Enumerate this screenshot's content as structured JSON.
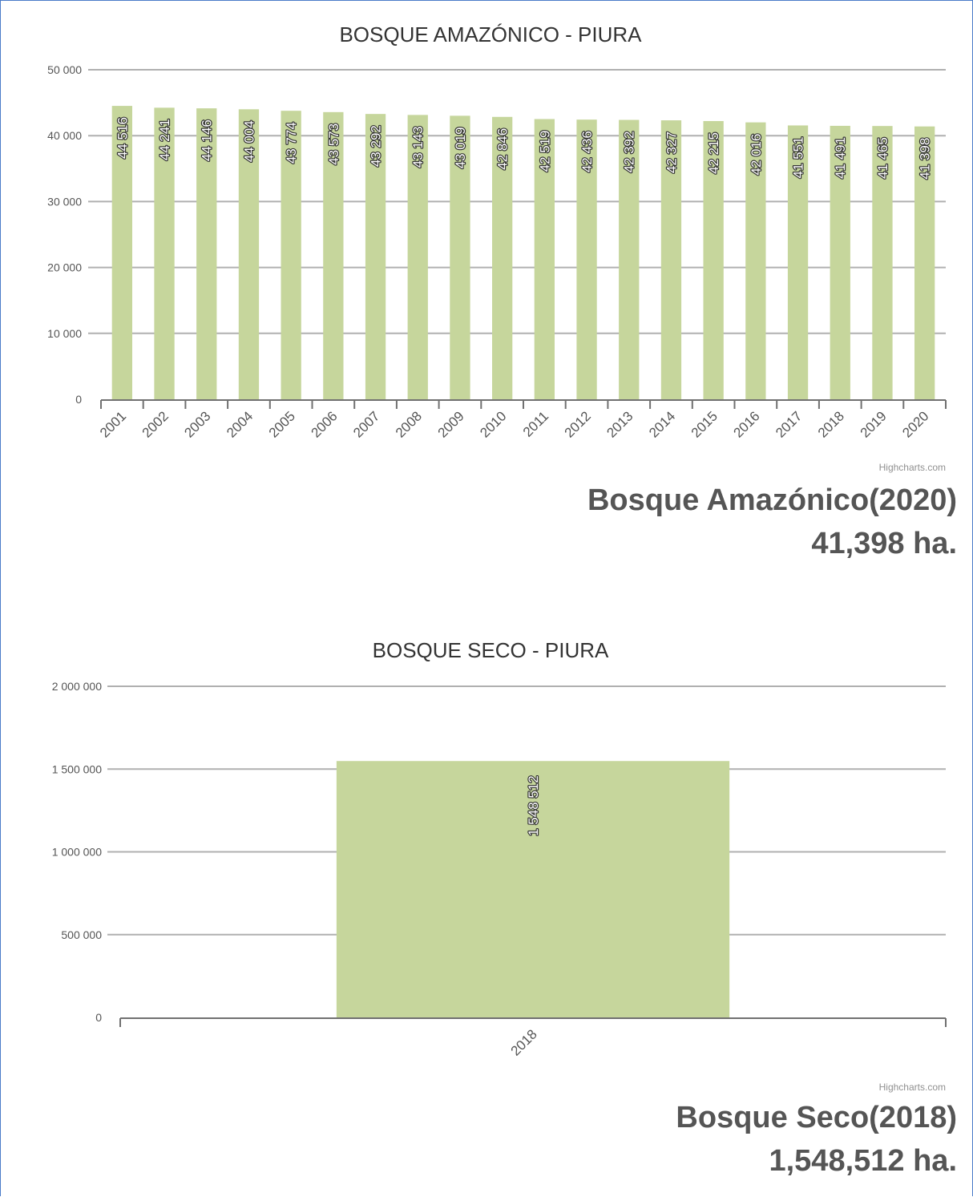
{
  "chart_data": [
    {
      "type": "bar",
      "title": "BOSQUE AMAZÓNICO - PIURA",
      "categories": [
        "2001",
        "2002",
        "2003",
        "2004",
        "2005",
        "2006",
        "2007",
        "2008",
        "2009",
        "2010",
        "2011",
        "2012",
        "2013",
        "2014",
        "2015",
        "2016",
        "2017",
        "2018",
        "2019",
        "2020"
      ],
      "values": [
        44516,
        44241,
        44146,
        44004,
        43774,
        43573,
        43292,
        43143,
        43019,
        42846,
        42519,
        42436,
        42392,
        42327,
        42215,
        42016,
        41551,
        41491,
        41465,
        41398
      ],
      "data_labels": [
        "44 516",
        "44 241",
        "44 146",
        "44 004",
        "43 774",
        "43 573",
        "43 292",
        "43 143",
        "43 019",
        "42 846",
        "42 519",
        "42 436",
        "42 392",
        "42 327",
        "42 215",
        "42 016",
        "41 551",
        "41 491",
        "41 465",
        "41 398"
      ],
      "ylim": [
        0,
        50000
      ],
      "yticks": [
        0,
        10000,
        20000,
        30000,
        40000,
        50000
      ],
      "ytick_labels": [
        "0",
        "10 000",
        "20 000",
        "30 000",
        "40 000",
        "50 000"
      ],
      "xlabel": "",
      "ylabel": "",
      "grid": true,
      "legend": false,
      "bar_color": "#c6d69c",
      "credit": "Highcharts.com"
    },
    {
      "type": "bar",
      "title": "BOSQUE SECO - PIURA",
      "categories": [
        "2018"
      ],
      "values": [
        1548512
      ],
      "data_labels": [
        "1 548 512"
      ],
      "ylim": [
        0,
        2000000
      ],
      "yticks": [
        0,
        500000,
        1000000,
        1500000,
        2000000
      ],
      "ytick_labels": [
        "0",
        "500 000",
        "1 000 000",
        "1 500 000",
        "2 000 000"
      ],
      "xlabel": "",
      "ylabel": "",
      "grid": true,
      "legend": false,
      "bar_color": "#c6d69c",
      "credit": "Highcharts.com"
    }
  ],
  "summaries": [
    {
      "title": "Bosque Amazónico(2020)",
      "value": "41,398 ha."
    },
    {
      "title": "Bosque Seco(2018)",
      "value": "1,548,512 ha."
    }
  ]
}
